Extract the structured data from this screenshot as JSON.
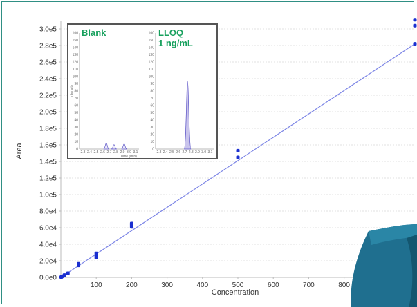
{
  "chart_data": {
    "type": "scatter",
    "title": "",
    "xlabel": "Concentration",
    "ylabel": "Area",
    "xlim": [
      0,
      1000
    ],
    "ylim": [
      0,
      310000
    ],
    "x_ticks": [
      100,
      200,
      300,
      400,
      500,
      600,
      700,
      800
    ],
    "y_ticks": [
      "0.0e0",
      "2.0e4",
      "4.0e4",
      "6.0e4",
      "8.0e4",
      "1.0e5",
      "1.2e5",
      "1.4e5",
      "1.6e5",
      "1.8e5",
      "2.0e5",
      "2.2e5",
      "2.4e5",
      "2.6e5",
      "2.8e5",
      "3.0e5"
    ],
    "y_tick_values": [
      0,
      20000,
      40000,
      60000,
      80000,
      100000,
      120000,
      140000,
      160000,
      180000,
      200000,
      220000,
      240000,
      260000,
      280000,
      300000
    ],
    "points": [
      {
        "x": 1,
        "y": 300
      },
      {
        "x": 2,
        "y": 600
      },
      {
        "x": 5,
        "y": 1400
      },
      {
        "x": 10,
        "y": 2800
      },
      {
        "x": 20,
        "y": 5000
      },
      {
        "x": 50,
        "y": 14500
      },
      {
        "x": 50,
        "y": 16500
      },
      {
        "x": 100,
        "y": 24000
      },
      {
        "x": 100,
        "y": 26500
      },
      {
        "x": 100,
        "y": 29000
      },
      {
        "x": 200,
        "y": 61000
      },
      {
        "x": 200,
        "y": 63000
      },
      {
        "x": 200,
        "y": 65000
      },
      {
        "x": 500,
        "y": 145000
      },
      {
        "x": 500,
        "y": 153000
      },
      {
        "x": 1000,
        "y": 282000
      },
      {
        "x": 1000,
        "y": 304000
      },
      {
        "x": 1000,
        "y": 311000
      }
    ],
    "fit_line": {
      "x": [
        0,
        1000
      ],
      "y": [
        0,
        282000
      ]
    },
    "colors": {
      "points": "#1a2fd0",
      "fit": "#7d86e6",
      "grid": "#e2e2e2"
    }
  },
  "inset": {
    "panels": [
      {
        "title_lines": [
          "Blank"
        ],
        "peaks": [
          {
            "pos": 0.45,
            "height": 8
          },
          {
            "pos": 0.58,
            "height": 6
          },
          {
            "pos": 0.75,
            "height": 7
          }
        ]
      },
      {
        "title_lines": [
          "LLOQ",
          "1 ng/mL"
        ],
        "peaks": [
          {
            "pos": 0.55,
            "height": 93
          }
        ]
      }
    ],
    "y_axis_label": "Intensity",
    "x_axis_label": "Time (min)",
    "mini_y_ticks": [
      "0",
      "10",
      "20",
      "30",
      "40",
      "50",
      "60",
      "70",
      "80",
      "90",
      "100",
      "110",
      "120",
      "130",
      "140",
      "150",
      "160"
    ],
    "mini_x_ticks": [
      "2.3",
      "2.4",
      "2.5",
      "2.6",
      "2.7",
      "2.8",
      "2.9",
      "3.0",
      "3.1"
    ],
    "accent_color": "#17a05d",
    "peak_fill": "#c9c4ec",
    "peak_stroke": "#5a52c6"
  }
}
